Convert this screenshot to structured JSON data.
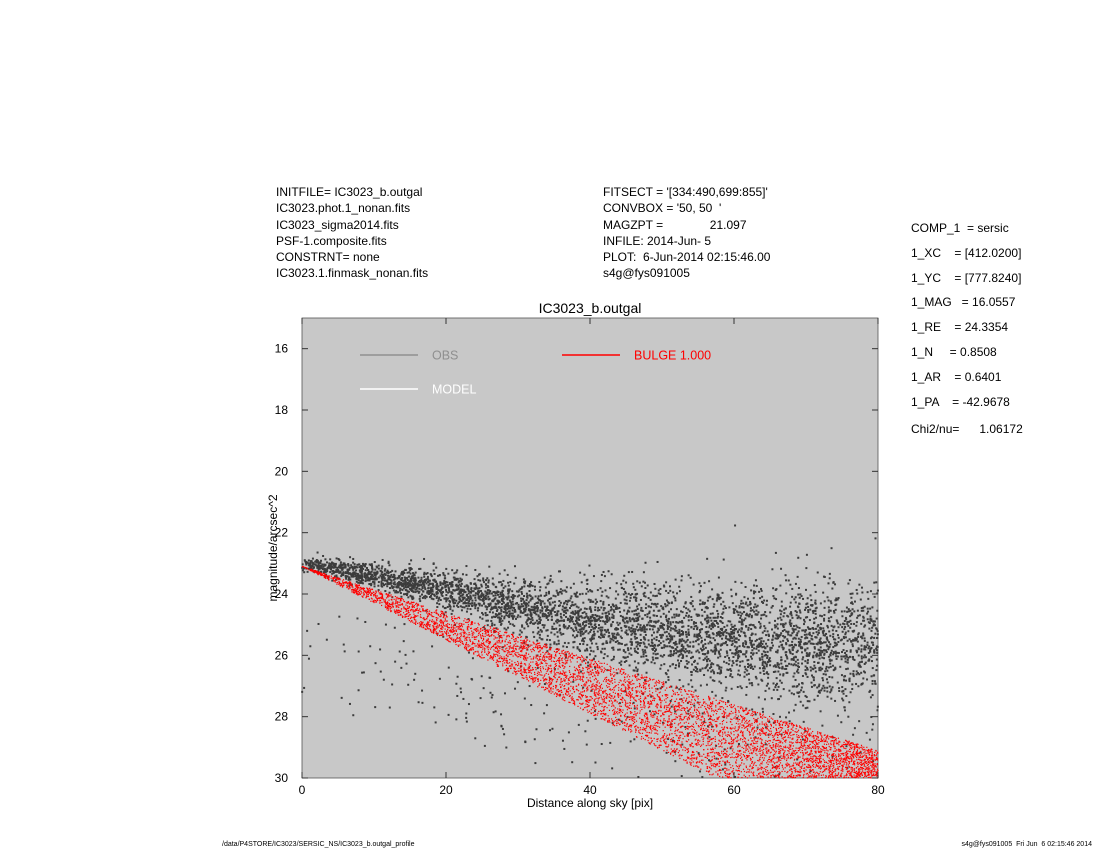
{
  "header_left": [
    "INITFILE= IC3023_b.outgal",
    "IC3023.phot.1_nonan.fits",
    "IC3023_sigma2014.fits",
    "PSF-1.composite.fits",
    "CONSTRNT= none",
    "IC3023.1.finmask_nonan.fits"
  ],
  "header_mid": [
    "FITSECT = '[334:490,699:855]'",
    "CONVBOX = '50, 50  '",
    "MAGZPT =              21.097",
    "INFILE: 2014-Jun- 5",
    "PLOT:  6-Jun-2014 02:15:46.00",
    "s4g@fys091005"
  ],
  "params": [
    "COMP_1  = sersic",
    "1_XC    = [412.0200]",
    "1_YC    = [777.8240]",
    "1_MAG   = 16.0557",
    "1_RE    = 24.3354",
    "1_N     = 0.8508",
    "1_AR    = 0.6401",
    "1_PA    = -42.9678"
  ],
  "chi2": "Chi2/nu=      1.06172",
  "footer_left": "/data/P4STORE/IC3023/SERSIC_NS/IC3023_b.outgal_profile",
  "footer_right": "s4g@fys091005  Fri Jun  6 02:15:46 2014",
  "chart_data": {
    "type": "scatter",
    "title": "IC3023_b.outgal",
    "xlabel": "Distance along sky [pix]",
    "ylabel": "magnitude/arcsec^2",
    "xlim": [
      0,
      80
    ],
    "ylim": [
      30,
      15
    ],
    "y_inverted": true,
    "xticks": [
      0,
      20,
      40,
      60,
      80
    ],
    "yticks": [
      16,
      18,
      20,
      22,
      24,
      26,
      28,
      30
    ],
    "background": "#c8c8c8",
    "legend": [
      {
        "label": "OBS",
        "color": "#8f8f8f"
      },
      {
        "label": "MODEL",
        "color": "#ffffff"
      },
      {
        "label": "BULGE  1.000",
        "color": "#ff0000"
      }
    ],
    "series": [
      {
        "name": "OBS",
        "color": "#3c3c3c",
        "trend": [
          [
            0,
            23.0
          ],
          [
            10,
            23.4
          ],
          [
            20,
            23.9
          ],
          [
            30,
            24.4
          ],
          [
            40,
            24.9
          ],
          [
            50,
            25.2
          ],
          [
            60,
            25.4
          ],
          [
            70,
            25.6
          ],
          [
            80,
            25.7
          ]
        ],
        "scatter_sigma": [
          [
            0,
            0.1
          ],
          [
            20,
            0.3
          ],
          [
            40,
            0.6
          ],
          [
            60,
            0.9
          ],
          [
            80,
            1.0
          ]
        ],
        "n_points": 4500
      },
      {
        "name": "BULGE  1.000",
        "color": "#ff0000",
        "band_upper": [
          [
            0,
            23.1
          ],
          [
            80,
            29.1
          ]
        ],
        "band_lower": [
          [
            0,
            23.1
          ],
          [
            57.5,
            30.0
          ]
        ],
        "n_points": 6000
      }
    ]
  }
}
